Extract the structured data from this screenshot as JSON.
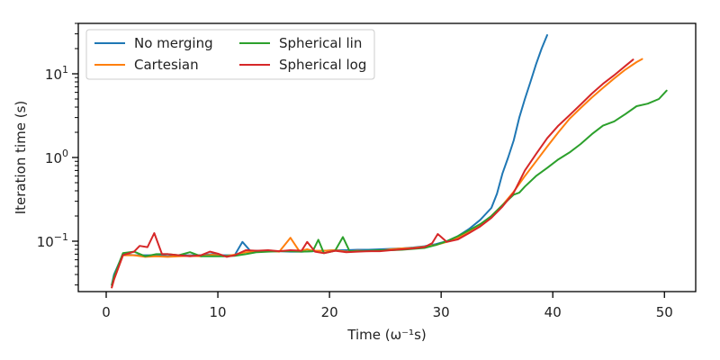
{
  "chart_data": {
    "type": "line",
    "title": "",
    "xlabel": "Time (ω⁻¹s)",
    "ylabel": "Iteration time (s)",
    "yscale": "log",
    "xlim": [
      -2.5,
      52.8
    ],
    "ylim": [
      0.025,
      40
    ],
    "grid": false,
    "legend_position": "top-left",
    "xticks": [
      0,
      10,
      20,
      30,
      40,
      50
    ],
    "yticks": [
      {
        "value": 0.1,
        "base": "10",
        "exp": "−1"
      },
      {
        "value": 1,
        "base": "10",
        "exp": "0"
      },
      {
        "value": 10,
        "base": "10",
        "exp": "1"
      }
    ],
    "series": [
      {
        "name": "No merging",
        "color": "#1f77b4",
        "x": [
          0.5,
          0.7,
          1.5,
          2.5,
          3.5,
          4.5,
          5.5,
          6.5,
          7.5,
          8.5,
          9.5,
          10.5,
          11.5,
          12.2,
          12.9,
          13.5,
          14.5,
          15.5,
          16.5,
          17.5,
          18.5,
          19.5,
          20.5,
          21.5,
          22.5,
          23.5,
          24.5,
          25.5,
          26.5,
          27.5,
          28.5,
          29.5,
          30.5,
          31.5,
          32.5,
          33.5,
          34.5,
          35.0,
          35.5,
          36.0,
          36.5,
          37.0,
          37.5,
          38.0,
          38.5,
          39.0,
          39.5
        ],
        "y": [
          0.03,
          0.04,
          0.07,
          0.068,
          0.068,
          0.068,
          0.066,
          0.068,
          0.068,
          0.068,
          0.07,
          0.068,
          0.068,
          0.098,
          0.077,
          0.077,
          0.076,
          0.076,
          0.075,
          0.075,
          0.076,
          0.077,
          0.078,
          0.078,
          0.079,
          0.079,
          0.08,
          0.081,
          0.082,
          0.084,
          0.087,
          0.092,
          0.1,
          0.115,
          0.14,
          0.18,
          0.25,
          0.37,
          0.65,
          1.0,
          1.6,
          3.0,
          5.0,
          8.0,
          13.0,
          20.0,
          29.0
        ]
      },
      {
        "name": "Cartesian",
        "color": "#ff7f0e",
        "x": [
          0.5,
          0.7,
          1.5,
          2.5,
          3.5,
          4.5,
          5.5,
          6.5,
          7.5,
          8.5,
          9.5,
          10.5,
          11.5,
          12.5,
          13.5,
          14.5,
          15.5,
          16.5,
          17.3,
          18.0,
          18.5,
          19.5,
          20.5,
          21.5,
          22.5,
          23.5,
          24.5,
          25.5,
          26.5,
          27.5,
          28.5,
          29.5,
          30.5,
          31.5,
          32.5,
          33.5,
          34.5,
          35.5,
          36.5,
          37.5,
          38.5,
          39.5,
          40.5,
          41.5,
          42.5,
          43.5,
          44.5,
          45.5,
          46.5,
          47.5,
          48.0
        ],
        "y": [
          0.028,
          0.035,
          0.068,
          0.068,
          0.065,
          0.066,
          0.065,
          0.066,
          0.067,
          0.066,
          0.069,
          0.066,
          0.069,
          0.074,
          0.075,
          0.077,
          0.075,
          0.11,
          0.076,
          0.08,
          0.077,
          0.077,
          0.078,
          0.075,
          0.077,
          0.076,
          0.077,
          0.08,
          0.082,
          0.083,
          0.086,
          0.09,
          0.098,
          0.11,
          0.13,
          0.155,
          0.2,
          0.27,
          0.39,
          0.6,
          0.9,
          1.35,
          2.0,
          2.9,
          3.9,
          5.2,
          6.8,
          8.8,
          11.2,
          13.8,
          15.0
        ]
      },
      {
        "name": "Spherical lin",
        "color": "#2ca02c",
        "x": [
          0.5,
          0.7,
          1.5,
          2.5,
          3.5,
          4.5,
          5.5,
          6.5,
          7.5,
          8.5,
          9.5,
          10.5,
          11.5,
          12.5,
          13.5,
          14.5,
          15.5,
          16.5,
          17.5,
          18.5,
          19.0,
          19.5,
          20.5,
          21.2,
          21.8,
          22.5,
          23.5,
          24.5,
          25.5,
          26.5,
          27.5,
          28.5,
          29.5,
          30.5,
          31.5,
          32.5,
          33.5,
          34.5,
          35.5,
          36.5,
          37.0,
          37.5,
          38.5,
          39.5,
          40.5,
          41.5,
          42.5,
          43.5,
          44.5,
          45.5,
          46.5,
          47.5,
          48.5,
          49.5,
          50.2
        ],
        "y": [
          0.03,
          0.038,
          0.072,
          0.075,
          0.066,
          0.07,
          0.07,
          0.068,
          0.074,
          0.066,
          0.066,
          0.066,
          0.067,
          0.07,
          0.074,
          0.075,
          0.076,
          0.076,
          0.075,
          0.076,
          0.104,
          0.072,
          0.077,
          0.112,
          0.076,
          0.076,
          0.077,
          0.078,
          0.078,
          0.079,
          0.081,
          0.083,
          0.09,
          0.1,
          0.115,
          0.135,
          0.16,
          0.2,
          0.27,
          0.36,
          0.38,
          0.45,
          0.6,
          0.75,
          0.95,
          1.15,
          1.45,
          1.9,
          2.4,
          2.7,
          3.3,
          4.1,
          4.4,
          5.0,
          6.3
        ]
      },
      {
        "name": "Spherical log",
        "color": "#d62728",
        "x": [
          0.5,
          0.7,
          1.5,
          2.5,
          3.0,
          3.7,
          4.3,
          5.0,
          5.5,
          6.5,
          7.5,
          8.5,
          9.3,
          10.0,
          10.8,
          11.5,
          12.5,
          13.5,
          14.5,
          15.5,
          16.5,
          17.5,
          18.0,
          18.7,
          19.5,
          20.5,
          21.5,
          22.5,
          23.5,
          24.5,
          25.5,
          26.5,
          27.5,
          28.5,
          29.2,
          29.7,
          30.5,
          31.5,
          32.5,
          33.5,
          34.5,
          35.5,
          36.5,
          37.5,
          38.5,
          39.5,
          40.5,
          41.5,
          42.5,
          43.5,
          44.5,
          45.5,
          46.5,
          47.2
        ],
        "y": [
          0.028,
          0.035,
          0.068,
          0.075,
          0.088,
          0.085,
          0.125,
          0.07,
          0.07,
          0.068,
          0.066,
          0.068,
          0.075,
          0.071,
          0.065,
          0.068,
          0.078,
          0.077,
          0.078,
          0.076,
          0.078,
          0.077,
          0.098,
          0.075,
          0.072,
          0.077,
          0.074,
          0.075,
          0.076,
          0.076,
          0.078,
          0.08,
          0.082,
          0.085,
          0.095,
          0.122,
          0.098,
          0.105,
          0.125,
          0.15,
          0.19,
          0.26,
          0.38,
          0.7,
          1.1,
          1.7,
          2.4,
          3.2,
          4.3,
          5.8,
          7.6,
          9.6,
          12.4,
          14.8
        ]
      }
    ]
  }
}
